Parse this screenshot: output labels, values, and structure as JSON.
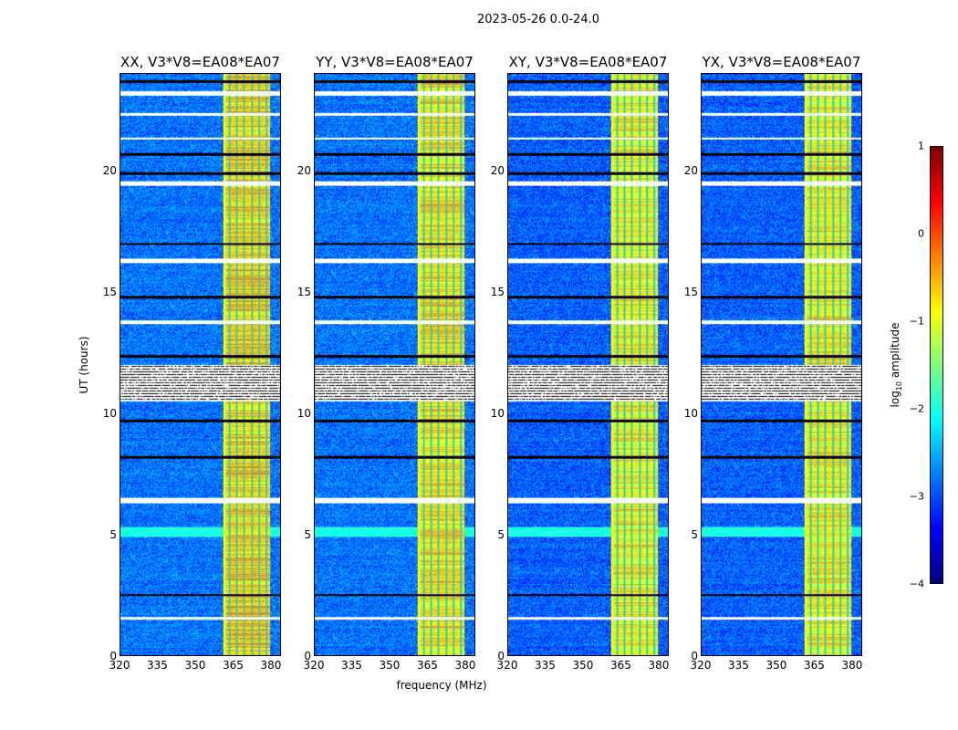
{
  "chart_data": {
    "type": "heatmap",
    "title": "2023-05-26 0.0-24.0",
    "xlabel": "frequency (MHz)",
    "ylabel": "UT (hours)",
    "xlim": [
      320,
      384
    ],
    "ylim": [
      0,
      24
    ],
    "xticks": [
      "320",
      "335",
      "350",
      "365",
      "380"
    ],
    "xtick_values": [
      320,
      335,
      350,
      365,
      380
    ],
    "yticks": [
      "0",
      "5",
      "10",
      "15",
      "20"
    ],
    "ytick_values": [
      0,
      5,
      10,
      15,
      20
    ],
    "panels": [
      {
        "title": "XX, V3*V8=EA08*EA07",
        "background_log_amp": -2.8,
        "band_log_amp": -0.6
      },
      {
        "title": "YY, V3*V8=EA08*EA07",
        "background_log_amp": -2.8,
        "band_log_amp": -0.7
      },
      {
        "title": "XY, V3*V8=EA08*EA07",
        "background_log_amp": -2.9,
        "band_log_amp": -0.8
      },
      {
        "title": "YX, V3*V8=EA08*EA07",
        "background_log_amp": -2.9,
        "band_log_amp": -0.8
      }
    ],
    "rfi_band_mhz": [
      361,
      380
    ],
    "flagged_hours": [
      [
        23.1,
        23.3
      ],
      [
        22.3,
        22.4
      ],
      [
        21.3,
        21.4
      ],
      [
        19.4,
        19.6
      ],
      [
        16.2,
        16.4
      ],
      [
        13.7,
        13.85
      ],
      [
        10.5,
        12.0
      ],
      [
        6.3,
        6.5
      ],
      [
        1.5,
        1.6
      ]
    ],
    "gap_hours": [
      2.5,
      8.2,
      9.7,
      12.35,
      14.8,
      17.0,
      19.9,
      20.7,
      23.7
    ],
    "colorbar": {
      "label": "log10 amplitude",
      "range": [
        -4,
        1
      ],
      "ticks": [
        "1",
        "0",
        "−1",
        "−2",
        "−3",
        "−4"
      ],
      "tick_values": [
        1,
        0,
        -1,
        -2,
        -3,
        -4
      ],
      "colormap": "jet"
    }
  }
}
